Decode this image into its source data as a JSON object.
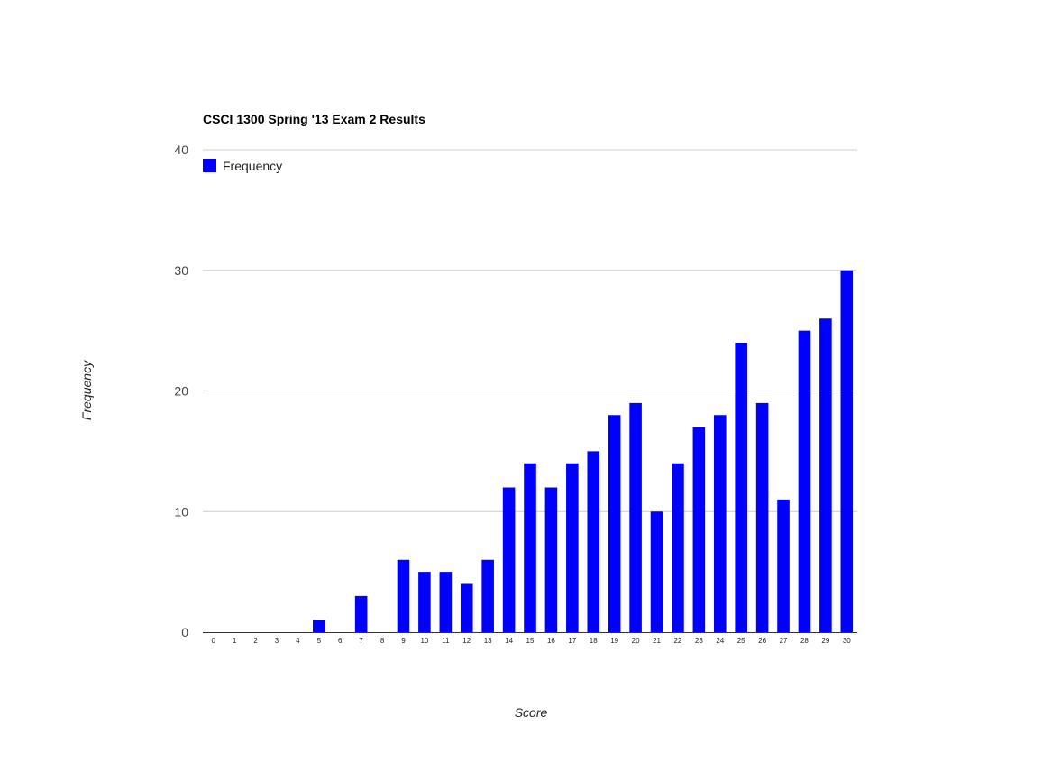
{
  "chart_data": {
    "type": "bar",
    "title": "CSCI 1300 Spring '13 Exam 2 Results",
    "xlabel": "Score",
    "ylabel": "Frequency",
    "ylim": [
      0,
      40
    ],
    "yticks": [
      "0",
      "10",
      "20",
      "30",
      "40"
    ],
    "grid": true,
    "legend_position": "top-left",
    "color": "#0000ff",
    "categories": [
      "0",
      "1",
      "2",
      "3",
      "4",
      "5",
      "6",
      "7",
      "8",
      "9",
      "10",
      "11",
      "12",
      "13",
      "14",
      "15",
      "16",
      "17",
      "18",
      "19",
      "20",
      "21",
      "22",
      "23",
      "24",
      "25",
      "26",
      "27",
      "28",
      "29",
      "30"
    ],
    "series": [
      {
        "name": "Frequency",
        "values": [
          0,
          0,
          0,
          0,
          0,
          1,
          0,
          3,
          0,
          6,
          5,
          5,
          4,
          6,
          12,
          14,
          12,
          14,
          15,
          18,
          19,
          10,
          14,
          17,
          18,
          24,
          19,
          11,
          25,
          26,
          30
        ]
      }
    ]
  }
}
